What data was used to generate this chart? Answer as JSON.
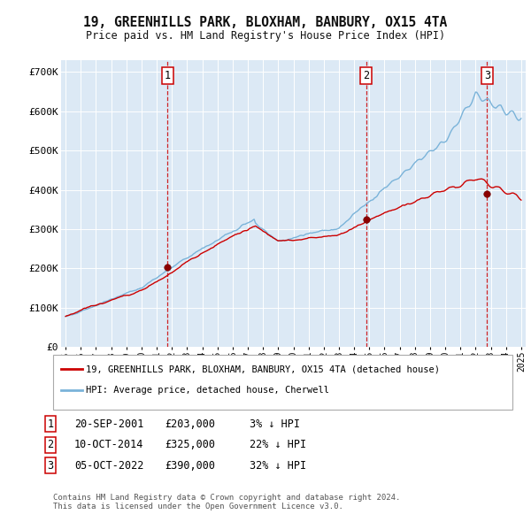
{
  "title": "19, GREENHILLS PARK, BLOXHAM, BANBURY, OX15 4TA",
  "subtitle": "Price paid vs. HM Land Registry's House Price Index (HPI)",
  "background_color": "#dce9f5",
  "plot_bg_color": "#dce9f5",
  "hpi_color": "#7ab3d9",
  "price_color": "#cc0000",
  "marker_color": "#8b0000",
  "vline_color": "#cc0000",
  "ylabel_values": [
    "£0",
    "£100K",
    "£200K",
    "£300K",
    "£400K",
    "£500K",
    "£600K",
    "£700K"
  ],
  "ylim": [
    0,
    730000
  ],
  "yticks": [
    0,
    100000,
    200000,
    300000,
    400000,
    500000,
    600000,
    700000
  ],
  "xlim_start": 1994.7,
  "xlim_end": 2025.3,
  "sale_years": [
    2001.72,
    2014.78,
    2022.76
  ],
  "sale_prices": [
    203000,
    325000,
    390000
  ],
  "sale_labels": [
    "1",
    "2",
    "3"
  ],
  "sale_date_strs": [
    "20-SEP-2001",
    "10-OCT-2014",
    "05-OCT-2022"
  ],
  "sale_price_strs": [
    "£203,000",
    "£325,000",
    "£390,000"
  ],
  "sale_hpi_strs": [
    "3% ↓ HPI",
    "22% ↓ HPI",
    "32% ↓ HPI"
  ],
  "legend_line1": "19, GREENHILLS PARK, BLOXHAM, BANBURY, OX15 4TA (detached house)",
  "legend_line2": "HPI: Average price, detached house, Cherwell",
  "footnote": "Contains HM Land Registry data © Crown copyright and database right 2024.\nThis data is licensed under the Open Government Licence v3.0."
}
